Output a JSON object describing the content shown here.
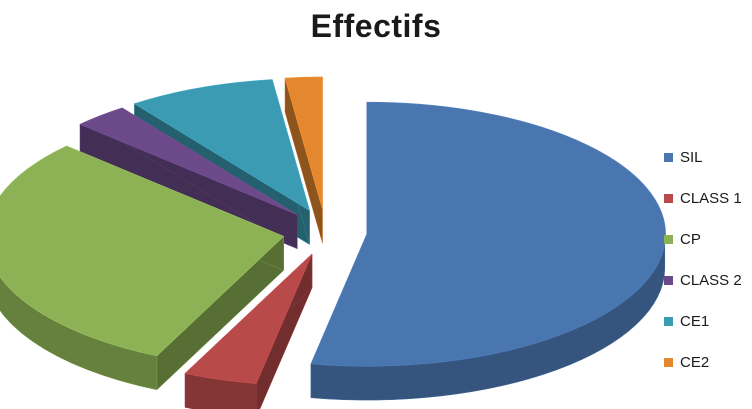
{
  "chart_data": {
    "type": "pie",
    "title": "Effectifs",
    "legend_position": "right",
    "three_d": true,
    "exploded": true,
    "categories": [
      "SIL",
      "CLASS 1",
      "CP",
      "CLASS 2",
      "CE1",
      "CE2"
    ],
    "values": [
      53,
      4,
      30,
      3,
      8,
      2
    ],
    "colors": [
      "#4a76b0",
      "#b84a4a",
      "#8db255",
      "#6c4a8a",
      "#3b9bb3",
      "#e3882f"
    ]
  }
}
